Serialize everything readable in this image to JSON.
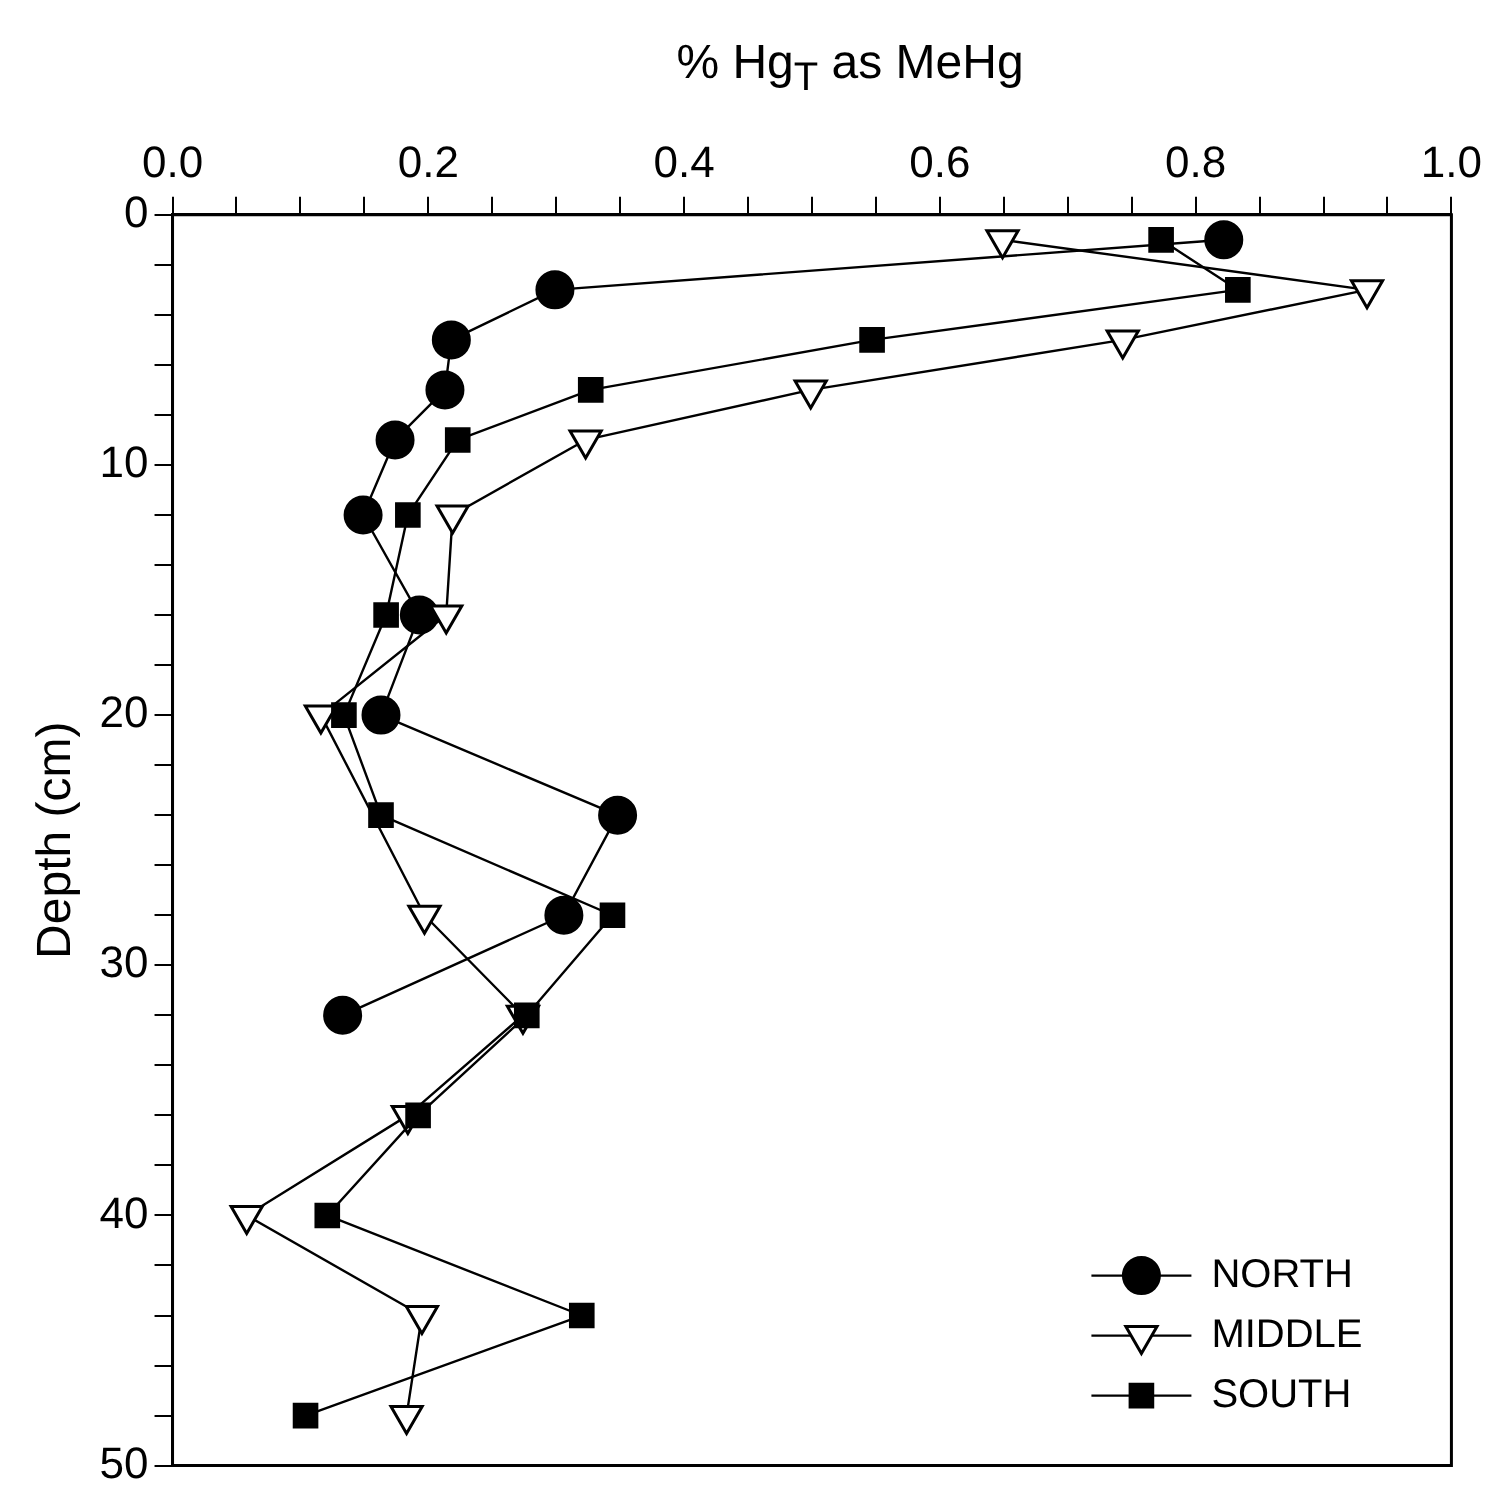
{
  "chart_data": {
    "type": "line",
    "xlabel": "% Hg$_{T}$ as MeHg",
    "ylabel": "Depth (cm)",
    "xlim": [
      0,
      1
    ],
    "ylim": [
      50,
      0
    ],
    "xticks": [
      {
        "value": 0,
        "label": "0.0"
      },
      {
        "value": 0.05,
        "label": null
      },
      {
        "value": 0.1,
        "label": null
      },
      {
        "value": 0.15,
        "label": null
      },
      {
        "value": 0.2,
        "label": "0.2"
      },
      {
        "value": 0.25,
        "label": null
      },
      {
        "value": 0.3,
        "label": null
      },
      {
        "value": 0.35,
        "label": null
      },
      {
        "value": 0.4,
        "label": "0.4"
      },
      {
        "value": 0.45,
        "label": null
      },
      {
        "value": 0.5,
        "label": null
      },
      {
        "value": 0.55,
        "label": null
      },
      {
        "value": 0.6,
        "label": "0.6"
      },
      {
        "value": 0.65,
        "label": null
      },
      {
        "value": 0.7,
        "label": null
      },
      {
        "value": 0.75,
        "label": null
      },
      {
        "value": 0.8,
        "label": "0.8"
      },
      {
        "value": 0.85,
        "label": null
      },
      {
        "value": 0.9,
        "label": null
      },
      {
        "value": 0.95,
        "label": null
      },
      {
        "value": 1,
        "label": "1.0"
      }
    ],
    "yticks": [
      0,
      {
        "value": 2,
        "label": null
      },
      {
        "value": 4,
        "label": null
      },
      {
        "value": 6,
        "label": null
      },
      {
        "value": 8,
        "label": null
      },
      10,
      {
        "value": 12,
        "label": null
      },
      {
        "value": 14,
        "label": null
      },
      {
        "value": 16,
        "label": null
      },
      {
        "value": 18,
        "label": null
      },
      20,
      {
        "value": 22,
        "label": null
      },
      {
        "value": 24,
        "label": null
      },
      {
        "value": 26,
        "label": null
      },
      {
        "value": 28,
        "label": null
      },
      30,
      {
        "value": 32,
        "label": null
      },
      {
        "value": 34,
        "label": null
      },
      {
        "value": 36,
        "label": null
      },
      {
        "value": 38,
        "label": null
      },
      40,
      {
        "value": 42,
        "label": null
      },
      {
        "value": 44,
        "label": null
      },
      {
        "value": 46,
        "label": null
      },
      {
        "value": 48,
        "label": null
      },
      50
    ],
    "grid": false,
    "legend": "bottom right",
    "line_style": "solid",
    "series": [
      {
        "name": "NORTH",
        "color": "#000000",
        "marker": "circle",
        "x": [
          0.822,
          0.299,
          0.218,
          0.213,
          0.174,
          0.149,
          0.193,
          0.163,
          0.348,
          0.306,
          0.133
        ],
        "values": [
          1,
          3,
          5,
          7,
          9,
          12,
          16,
          20,
          24,
          28,
          32
        ]
      },
      {
        "name": "MIDDLE",
        "color": "#000000",
        "marker": "triangle",
        "x": [
          0.649,
          0.934,
          0.743,
          0.499,
          0.323,
          0.219,
          0.214,
          0.116,
          0.197,
          0.274,
          0.184,
          0.058,
          0.195,
          0.183
        ],
        "values": [
          1,
          3,
          5,
          7,
          9,
          12,
          16,
          20,
          28,
          32,
          36,
          40,
          44,
          48
        ]
      },
      {
        "name": "SOUTH",
        "color": "#000000",
        "marker": "square",
        "x": [
          0.773,
          0.833,
          0.547,
          0.327,
          0.223,
          0.184,
          0.167,
          0.134,
          0.163,
          0.344,
          0.277,
          0.192,
          0.121,
          0.32,
          0.104
        ],
        "values": [
          1,
          3,
          5,
          7,
          9,
          12,
          16,
          20,
          24,
          28,
          32,
          36,
          40,
          44,
          48
        ]
      }
    ]
  }
}
